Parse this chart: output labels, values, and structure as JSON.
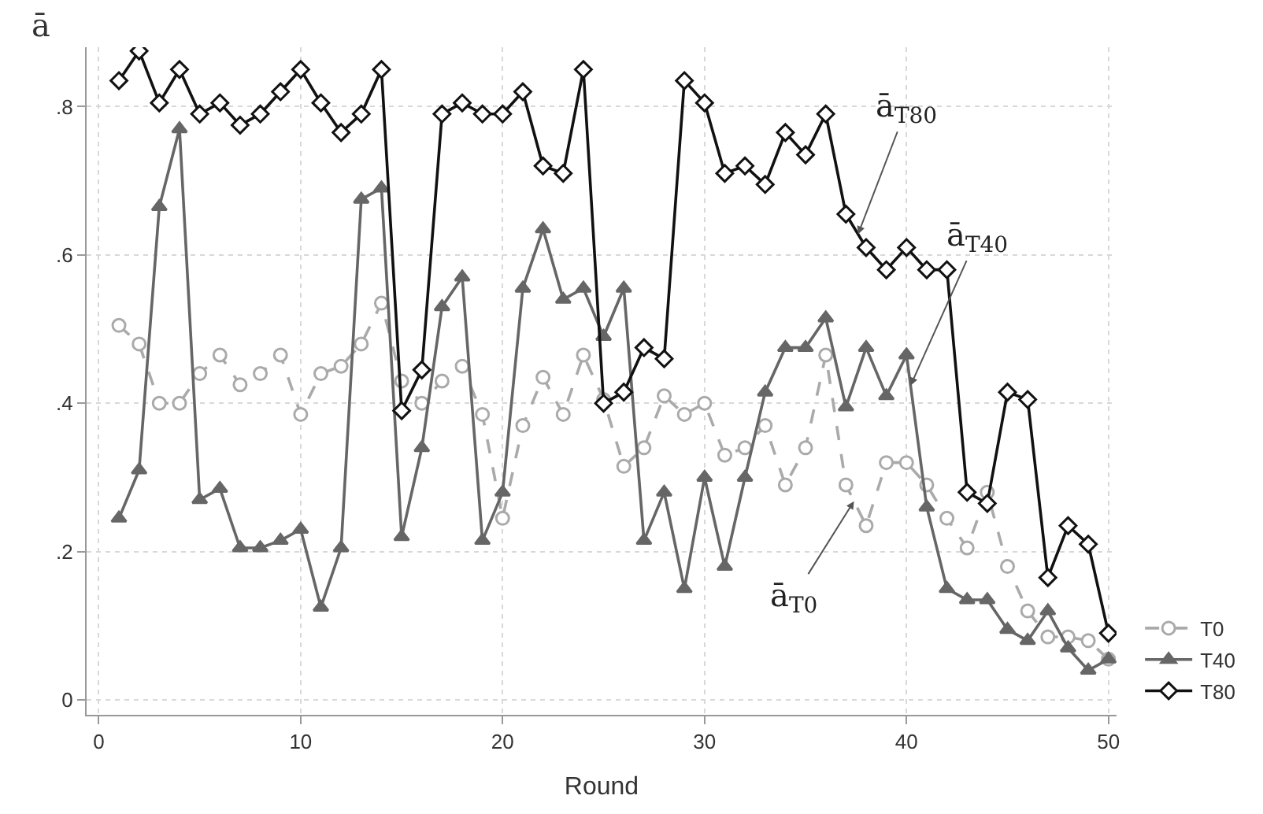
{
  "chart_data": {
    "type": "line",
    "xlabel": "Round",
    "ylabel": "ā",
    "x": [
      1,
      2,
      3,
      4,
      5,
      6,
      7,
      8,
      9,
      10,
      11,
      12,
      13,
      14,
      15,
      16,
      17,
      18,
      19,
      20,
      21,
      22,
      23,
      24,
      25,
      26,
      27,
      28,
      29,
      30,
      31,
      32,
      33,
      34,
      35,
      36,
      37,
      38,
      39,
      40,
      41,
      42,
      43,
      44,
      45,
      46,
      47,
      48,
      49,
      50
    ],
    "series": [
      {
        "name": "T0",
        "color": "#aaaaaa",
        "marker": "circle",
        "line_style": "dashed",
        "values": [
          0.505,
          0.48,
          0.4,
          0.4,
          0.44,
          0.465,
          0.425,
          0.44,
          0.465,
          0.385,
          0.44,
          0.45,
          0.48,
          0.535,
          0.43,
          0.4,
          0.43,
          0.45,
          0.385,
          0.245,
          0.37,
          0.435,
          0.385,
          0.465,
          0.405,
          0.315,
          0.34,
          0.41,
          0.385,
          0.4,
          0.33,
          0.34,
          0.37,
          0.29,
          0.34,
          0.465,
          0.29,
          0.235,
          0.32,
          0.32,
          0.29,
          0.245,
          0.205,
          0.28,
          0.18,
          0.12,
          0.085,
          0.085,
          0.08,
          0.055
        ]
      },
      {
        "name": "T40",
        "color": "#666666",
        "marker": "triangle",
        "line_style": "solid",
        "values": [
          0.245,
          0.31,
          0.665,
          0.77,
          0.27,
          0.285,
          0.205,
          0.205,
          0.215,
          0.23,
          0.125,
          0.205,
          0.675,
          0.69,
          0.22,
          0.34,
          0.53,
          0.57,
          0.215,
          0.28,
          0.555,
          0.635,
          0.54,
          0.555,
          0.49,
          0.555,
          0.215,
          0.28,
          0.15,
          0.3,
          0.18,
          0.3,
          0.415,
          0.475,
          0.475,
          0.515,
          0.395,
          0.475,
          0.41,
          0.465,
          0.26,
          0.15,
          0.135,
          0.135,
          0.095,
          0.08,
          0.12,
          0.07,
          0.04,
          0.055
        ]
      },
      {
        "name": "T80",
        "color": "#111111",
        "marker": "diamond",
        "line_style": "solid",
        "values": [
          0.835,
          0.875,
          0.805,
          0.85,
          0.79,
          0.805,
          0.775,
          0.79,
          0.82,
          0.85,
          0.805,
          0.765,
          0.79,
          0.85,
          0.39,
          0.445,
          0.79,
          0.805,
          0.79,
          0.79,
          0.82,
          0.72,
          0.71,
          0.85,
          0.4,
          0.415,
          0.475,
          0.46,
          0.835,
          0.805,
          0.71,
          0.72,
          0.695,
          0.765,
          0.735,
          0.79,
          0.655,
          0.61,
          0.58,
          0.61,
          0.58,
          0.58,
          0.28,
          0.265,
          0.415,
          0.405,
          0.165,
          0.235,
          0.21,
          0.09
        ]
      }
    ],
    "xlim": [
      -0.6,
      50.4
    ],
    "xticks": [
      0,
      10,
      20,
      30,
      40,
      50
    ],
    "ylim": [
      -0.02,
      0.88
    ],
    "yticks": [
      {
        "value": 0,
        "label": "0"
      },
      {
        "value": 0.2,
        "label": ".2"
      },
      {
        "value": 0.4,
        "label": ".4"
      },
      {
        "value": 0.6,
        "label": ".6"
      },
      {
        "value": 0.8,
        "label": ".8"
      }
    ],
    "grid": true,
    "legend": "bottom right",
    "annotations": [
      {
        "text": "ā$_{T80}$",
        "x": 37.6,
        "y": 0.628
      },
      {
        "text": "ā$_{T40}$",
        "x": 40.2,
        "y": 0.424
      },
      {
        "text": "ā$_{T0}$",
        "x": 37.4,
        "y": 0.268
      }
    ]
  }
}
